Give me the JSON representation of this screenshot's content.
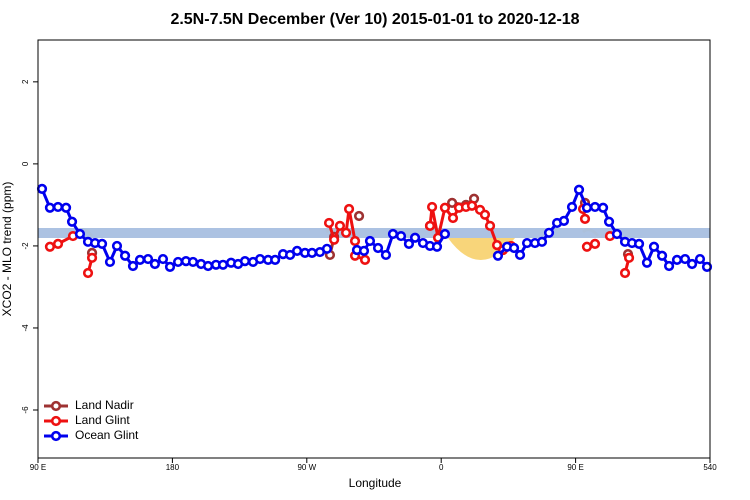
{
  "chart_data": {
    "type": "line",
    "title": "2.5N-7.5N December (Ver 10)   2015-01-01 to 2020-12-18",
    "x_label": "Longitude",
    "y_label": "XCO2 - MLO trend (ppm)",
    "xlim": [
      90,
      540
    ],
    "ylim": [
      -7.17,
      3.02
    ],
    "xticks": [
      {
        "value": 90,
        "label": "90 E"
      },
      180,
      {
        "value": 270,
        "label": "90 W"
      },
      {
        "value": 360,
        "label": "0"
      },
      {
        "value": 450,
        "label": "90 E"
      },
      540
    ],
    "yticks": [
      -6,
      -4,
      -2,
      0,
      2
    ],
    "legend": "bottom-left",
    "series": [
      {
        "name": "Land Nadir",
        "color": "#9e3232",
        "x": [
          126.2,
          null,
          285.5,
          288.3,
          null,
          305.0,
          null,
          352.5,
          null,
          367.3,
          376.6,
          382.0,
          null,
          456.3,
          null,
          485.1
        ],
        "values": [
          -2.17,
          null,
          -2.22,
          -1.78,
          null,
          -1.27,
          null,
          -1.51,
          null,
          -0.95,
          -1.0,
          -0.85,
          null,
          -0.95,
          null,
          -2.2
        ]
      },
      {
        "name": "Land Glint",
        "color": "#ee1111",
        "x": [
          98.0,
          103.4,
          113.4,
          null,
          123.5,
          126.2,
          null,
          284.9,
          288.3,
          292.2,
          296.3,
          298.3,
          302.3,
          null,
          302.3,
          309.0,
          null,
          352.5,
          353.9,
          357.9,
          362.5,
          367.9,
          371.9,
          376.6,
          380.6,
          386.0,
          389.3,
          392.7,
          397.4,
          401.4,
          406.8,
          null,
          455.0,
          456.3,
          null,
          457.6,
          463.0,
          null,
          473.0,
          null,
          483.1,
          485.8
        ],
        "values": [
          -2.02,
          -1.95,
          -1.76,
          null,
          -2.66,
          -2.29,
          null,
          -1.44,
          -1.85,
          -1.51,
          -1.68,
          -1.1,
          -1.88,
          null,
          -2.24,
          -2.34,
          null,
          -1.51,
          -1.05,
          -1.8,
          -1.07,
          -1.32,
          -1.07,
          -1.05,
          -1.02,
          -1.12,
          -1.24,
          -1.51,
          -1.98,
          -2.1,
          -2.0,
          null,
          -1.1,
          -1.34,
          null,
          -2.02,
          -1.95,
          null,
          -1.76,
          null,
          -2.66,
          -2.29
        ]
      },
      {
        "name": "Ocean Glint",
        "color": "#0000ee",
        "x": [
          92.7,
          98.0,
          103.4,
          108.8,
          112.8,
          118.1,
          123.5,
          128.2,
          132.9,
          138.2,
          142.9,
          148.3,
          153.6,
          158.3,
          163.7,
          168.3,
          173.7,
          178.4,
          183.8,
          189.1,
          193.8,
          199.2,
          203.9,
          209.2,
          213.9,
          219.3,
          224.0,
          228.6,
          234.0,
          238.7,
          244.1,
          248.8,
          254.1,
          258.8,
          263.5,
          268.8,
          273.5,
          278.8,
          283.5,
          null,
          303.6,
          308.3,
          312.3,
          317.7,
          323.0,
          327.7,
          333.1,
          338.4,
          342.5,
          347.8,
          352.5,
          357.2,
          362.5,
          null,
          398.0,
          404.1,
          408.8,
          412.8,
          417.5,
          422.8,
          427.5,
          432.2,
          437.6,
          442.2,
          447.6,
          452.3,
          457.6,
          463.0,
          468.4,
          472.4,
          477.7,
          483.1,
          487.8,
          492.5,
          497.8,
          502.5,
          507.9,
          512.6,
          517.9,
          523.3,
          528.0,
          533.3,
          538.0
        ],
        "values": [
          -0.61,
          -1.07,
          -1.05,
          -1.07,
          -1.41,
          -1.71,
          -1.9,
          -1.93,
          -1.95,
          -2.39,
          -2.0,
          -2.24,
          -2.49,
          -2.34,
          -2.32,
          -2.44,
          -2.32,
          -2.51,
          -2.39,
          -2.37,
          -2.39,
          -2.44,
          -2.49,
          -2.46,
          -2.46,
          -2.41,
          -2.44,
          -2.37,
          -2.39,
          -2.32,
          -2.34,
          -2.34,
          -2.2,
          -2.22,
          -2.12,
          -2.17,
          -2.17,
          -2.15,
          -2.07,
          null,
          -2.1,
          -2.12,
          -1.88,
          -2.05,
          -2.22,
          -1.71,
          -1.76,
          -1.95,
          -1.8,
          -1.93,
          -2.0,
          -2.02,
          -1.71,
          null,
          -2.24,
          -2.02,
          -2.05,
          -2.22,
          -1.93,
          -1.93,
          -1.9,
          -1.68,
          -1.44,
          -1.39,
          -1.05,
          -0.63,
          -1.07,
          -1.05,
          -1.07,
          -1.41,
          -1.71,
          -1.9,
          -1.93,
          -1.95,
          -2.41,
          -2.02,
          -2.24,
          -2.49,
          -2.34,
          -2.32,
          -2.44,
          -2.32,
          -2.51
        ]
      }
    ]
  }
}
